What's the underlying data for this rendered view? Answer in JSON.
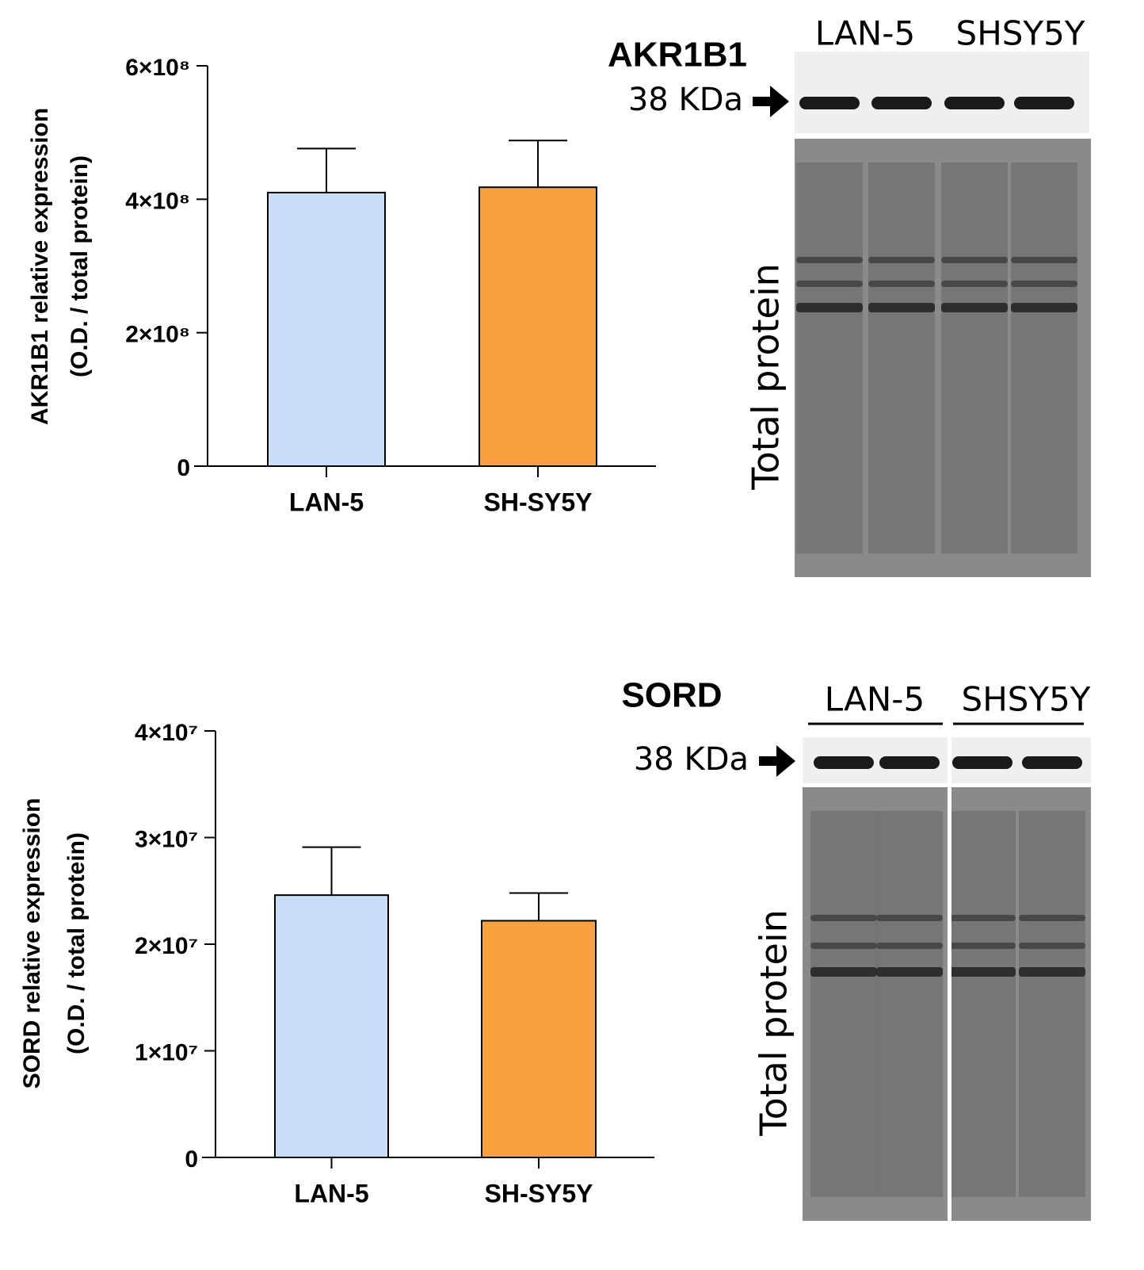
{
  "chart_data": [
    {
      "type": "bar",
      "ylabel": [
        "AKR1B1 relative expression",
        "(O.D. / total protein)"
      ],
      "categories": [
        "LAN-5",
        "SH-SY5Y"
      ],
      "values": [
        410000000,
        418000000
      ],
      "errors": [
        66000000,
        70000000
      ],
      "colors": [
        "#c9dcf5",
        "#f9a040"
      ],
      "ylim": [
        0,
        600000000
      ],
      "yticks": [
        0,
        {
          "value": 200000000,
          "label": "2×10⁸"
        },
        {
          "value": 400000000,
          "label": "4×10⁸"
        },
        {
          "value": 600000000,
          "label": "6×10⁸"
        }
      ]
    },
    {
      "type": "bar",
      "ylabel": [
        "SORD relative expression",
        "(O.D. / total protein)"
      ],
      "categories": [
        "LAN-5",
        "SH-SY5Y"
      ],
      "values": [
        24600000,
        22200000
      ],
      "errors": [
        4500000,
        2600000
      ],
      "colors": [
        "#c9dcf5",
        "#f9a040"
      ],
      "ylim": [
        0,
        40000000
      ],
      "yticks": [
        0,
        {
          "value": 10000000,
          "label": "1×10⁷"
        },
        {
          "value": 20000000,
          "label": "2×10⁷"
        },
        {
          "value": 30000000,
          "label": "3×10⁷"
        },
        {
          "value": 40000000,
          "label": "4×10⁷"
        }
      ]
    }
  ],
  "blots": [
    {
      "title": "AKR1B1",
      "lanes": [
        "LAN-5",
        "SHSY5Y"
      ],
      "marker": "38 KDa",
      "loading": "Total protein"
    },
    {
      "title": "SORD",
      "lanes": [
        "LAN-5",
        "SHSY5Y"
      ],
      "marker": "38 KDa",
      "loading": "Total protein"
    }
  ]
}
